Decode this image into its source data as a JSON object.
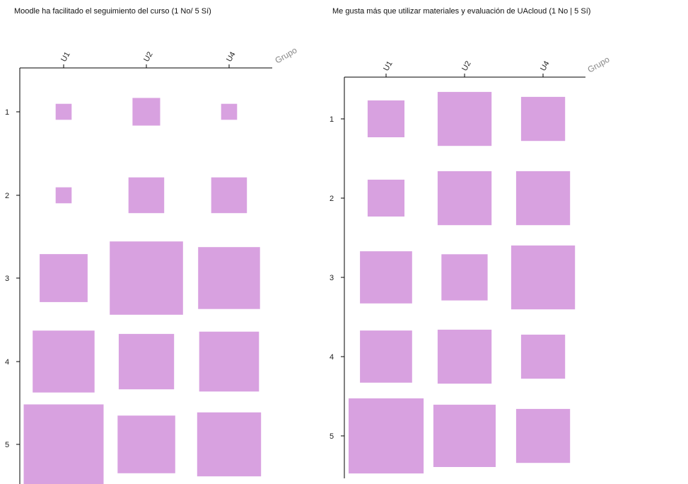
{
  "chart_data": [
    {
      "type": "heatmap",
      "encoding": "square area proportional to count",
      "title": "Moodle ha facilitado el seguimiento del curso (1 No/ 5 Sí)",
      "x_axis_title": "Grupo",
      "x_categories": [
        "U1",
        "U2",
        "U4"
      ],
      "y_categories": [
        "1",
        "2",
        "3",
        "4",
        "5"
      ],
      "values": [
        [
          1,
          3,
          1
        ],
        [
          1,
          5,
          5
        ],
        [
          9,
          21,
          15
        ],
        [
          15,
          12,
          14
        ],
        [
          25,
          13,
          16
        ]
      ],
      "color": "#d8a1e0"
    },
    {
      "type": "heatmap",
      "encoding": "square area proportional to count",
      "title": "Me gusta más que utilizar materiales y evaluación de UAcloud (1 No | 5 Sí)",
      "x_axis_title": "Grupo",
      "x_categories": [
        "U1",
        "U2",
        "U4"
      ],
      "y_categories": [
        "1",
        "2",
        "3",
        "4",
        "5"
      ],
      "values": [
        [
          7,
          15,
          10
        ],
        [
          7,
          15,
          15
        ],
        [
          14,
          11,
          21
        ],
        [
          14,
          15,
          10
        ],
        [
          29,
          20,
          15
        ]
      ],
      "color": "#d8a1e0"
    }
  ]
}
